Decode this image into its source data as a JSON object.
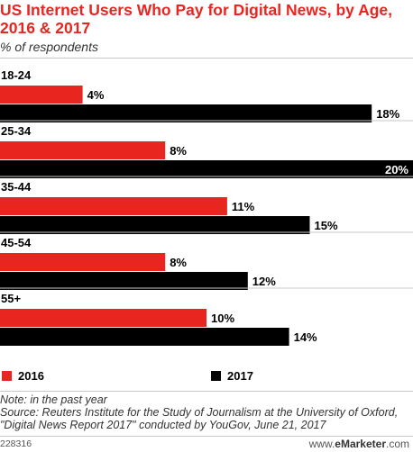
{
  "title": "US Internet Users Who Pay for Digital News, by Age, 2016 & 2017",
  "subtitle": "% of respondents",
  "legend": {
    "label_2016": "2016",
    "label_2017": "2017"
  },
  "notes": {
    "note": "Note: in the past year",
    "source": "Source: Reuters Institute for the Study of Journalism at the University of Oxford, \"Digital News Report 2017\" conducted by YouGov, June 21, 2017"
  },
  "footer": {
    "id": "228316",
    "site_prefix": "www.",
    "site_brand": "eMarketer",
    "site_suffix": ".com"
  },
  "colors": {
    "series_2016": "#e8251f",
    "series_2017": "#000000",
    "title": "#e8251f"
  },
  "chart_data": {
    "type": "bar",
    "orientation": "horizontal",
    "title": "US Internet Users Who Pay for Digital News, by Age, 2016 & 2017",
    "subtitle": "% of respondents",
    "categories": [
      "18-24",
      "25-34",
      "35-44",
      "45-54",
      "55+"
    ],
    "series": [
      {
        "name": "2016",
        "values": [
          4,
          8,
          11,
          8,
          10
        ]
      },
      {
        "name": "2017",
        "values": [
          18,
          20,
          15,
          12,
          14
        ]
      }
    ],
    "value_suffix": "%",
    "xlim": [
      0,
      20
    ],
    "grid": false,
    "legend_position": "bottom-left"
  }
}
